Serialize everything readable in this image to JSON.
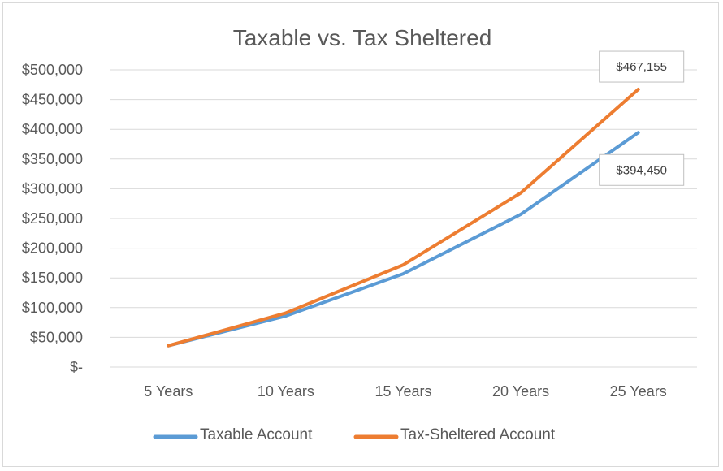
{
  "chart_data": {
    "type": "line",
    "title": "Taxable vs. Tax Sheltered",
    "categories": [
      "5 Years",
      "10 Years",
      "15 Years",
      "20 Years",
      "25 Years"
    ],
    "series": [
      {
        "name": "Taxable Account",
        "values": [
          36000,
          86000,
          157000,
          257000,
          394450
        ],
        "color": "#5b9bd5"
      },
      {
        "name": "Tax-Sheltered Account",
        "values": [
          36000,
          91000,
          172000,
          293000,
          467155
        ],
        "color": "#ed7d31"
      }
    ],
    "ylim": [
      0,
      500000
    ],
    "yticks": [
      0,
      50000,
      100000,
      150000,
      200000,
      250000,
      300000,
      350000,
      400000,
      450000,
      500000
    ],
    "ytick_labels": [
      "$-",
      "$50,000",
      "$100,000",
      "$150,000",
      "$200,000",
      "$250,000",
      "$300,000",
      "$350,000",
      "$400,000",
      "$450,000",
      "$500,000"
    ],
    "annotations": [
      {
        "series": 1,
        "point": 4,
        "text": "$467,155"
      },
      {
        "series": 0,
        "point": 4,
        "text": "$394,450"
      }
    ],
    "grid": true,
    "legend": "bottom"
  }
}
